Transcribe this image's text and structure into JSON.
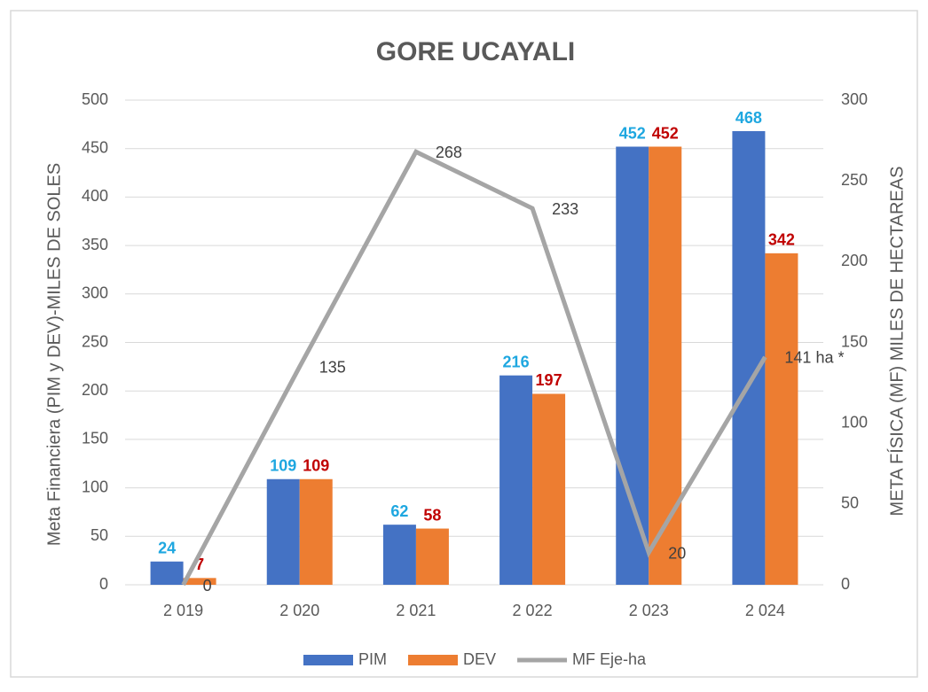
{
  "chart_data": {
    "type": "bar",
    "title": "GORE UCAYALI",
    "y_label": "Meta Financiera (PIM y DEV)-MILES DE SOLES",
    "y2_label": "META FÍSICA (MF) MILES DE HECTAREAS",
    "categories": [
      "2 019",
      "2 020",
      "2 021",
      "2 022",
      "2 023",
      "2 024"
    ],
    "series": [
      {
        "name": "PIM",
        "type": "bar",
        "color": "#4472c4",
        "label_color": "#1ea7e0",
        "values": [
          24,
          109,
          62,
          216,
          452,
          468
        ]
      },
      {
        "name": "DEV",
        "type": "bar",
        "color": "#ed7d31",
        "label_color": "#c00000",
        "values": [
          7,
          109,
          58,
          197,
          452,
          342
        ]
      },
      {
        "name": "MF Eje-ha",
        "type": "line",
        "axis": "y2",
        "color": "#a5a5a5",
        "label_color": "#404040",
        "values": [
          0,
          135,
          268,
          233,
          20,
          141
        ],
        "value_labels": [
          "0",
          "135",
          "268",
          "233",
          "20",
          "141 ha *"
        ]
      }
    ],
    "ylim": [
      0,
      500
    ],
    "yticks": [
      0,
      50,
      100,
      150,
      200,
      250,
      300,
      350,
      400,
      450,
      500
    ],
    "y2lim": [
      0,
      300
    ],
    "y2ticks": [
      0,
      50,
      100,
      150,
      200,
      250,
      300
    ],
    "grid": true,
    "legend": "bottom"
  }
}
